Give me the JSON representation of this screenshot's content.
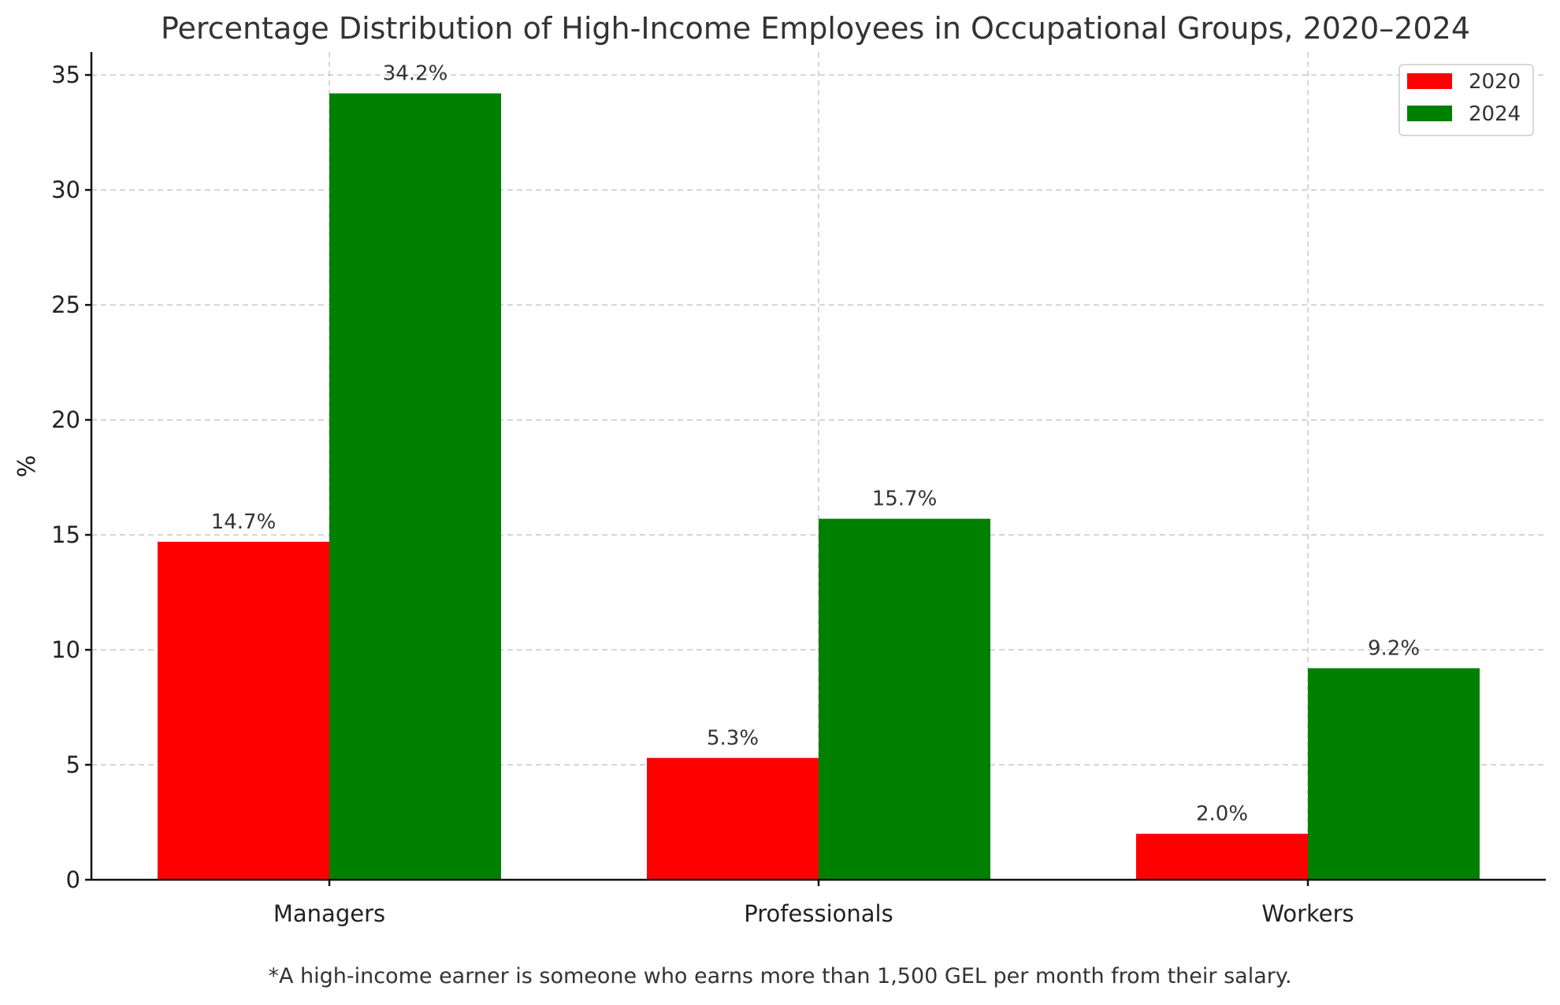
{
  "chart_data": {
    "type": "bar",
    "title": "Percentage Distribution of High-Income Employees in Occupational Groups, 2020–2024",
    "xlabel": "",
    "ylabel": "%",
    "categories": [
      "Managers",
      "Professionals",
      "Workers"
    ],
    "series": [
      {
        "name": "2020",
        "color": "#ff0000",
        "values": [
          14.7,
          5.3,
          2.0
        ],
        "labels": [
          "14.7%",
          "5.3%",
          "2.0%"
        ]
      },
      {
        "name": "2024",
        "color": "#008000",
        "values": [
          34.2,
          15.7,
          9.2
        ],
        "labels": [
          "34.2%",
          "15.7%",
          "9.2%"
        ]
      }
    ],
    "ylim": [
      0,
      36
    ],
    "yticks": [
      "0",
      "5",
      "10",
      "15",
      "20",
      "25",
      "30",
      "35"
    ],
    "grid": true,
    "legend_position": "top-right"
  },
  "footnote": "*A high-income earner is someone who earns more than 1,500 GEL per month from their salary."
}
